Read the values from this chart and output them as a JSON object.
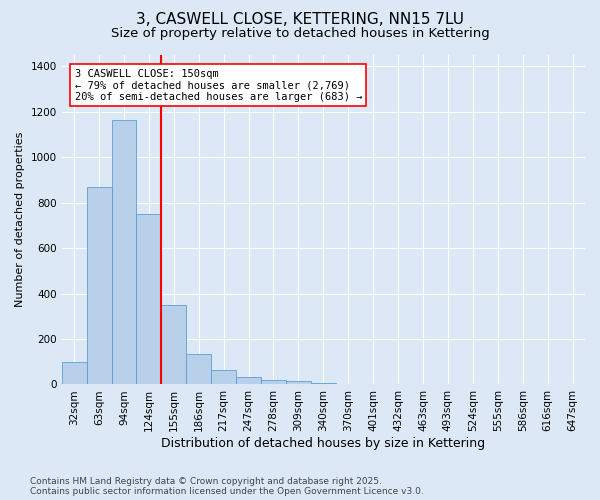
{
  "title": "3, CASWELL CLOSE, KETTERING, NN15 7LU",
  "subtitle": "Size of property relative to detached houses in Kettering",
  "xlabel": "Distribution of detached houses by size in Kettering",
  "ylabel": "Number of detached properties",
  "categories": [
    "32sqm",
    "63sqm",
    "94sqm",
    "124sqm",
    "155sqm",
    "186sqm",
    "217sqm",
    "247sqm",
    "278sqm",
    "309sqm",
    "340sqm",
    "370sqm",
    "401sqm",
    "432sqm",
    "463sqm",
    "493sqm",
    "524sqm",
    "555sqm",
    "586sqm",
    "616sqm",
    "647sqm"
  ],
  "values": [
    97,
    871,
    1163,
    752,
    348,
    133,
    62,
    32,
    20,
    14,
    8,
    0,
    0,
    0,
    0,
    0,
    0,
    0,
    0,
    0,
    0
  ],
  "bar_color": "#b8d0ea",
  "bar_edge_color": "#5a9fd4",
  "vline_x": 3.5,
  "vline_color": "red",
  "annotation_text": "3 CASWELL CLOSE: 150sqm\n← 79% of detached houses are smaller (2,769)\n20% of semi-detached houses are larger (683) →",
  "annotation_box_color": "white",
  "annotation_box_edge_color": "red",
  "annotation_fontsize": 7.5,
  "ylim": [
    0,
    1450
  ],
  "background_color": "#dce8f5",
  "axes_background_color": "#dce8f5",
  "footer1": "Contains HM Land Registry data © Crown copyright and database right 2025.",
  "footer2": "Contains public sector information licensed under the Open Government Licence v3.0.",
  "title_fontsize": 11,
  "subtitle_fontsize": 9.5,
  "xlabel_fontsize": 9,
  "ylabel_fontsize": 8,
  "tick_fontsize": 7.5,
  "footer_fontsize": 6.5
}
